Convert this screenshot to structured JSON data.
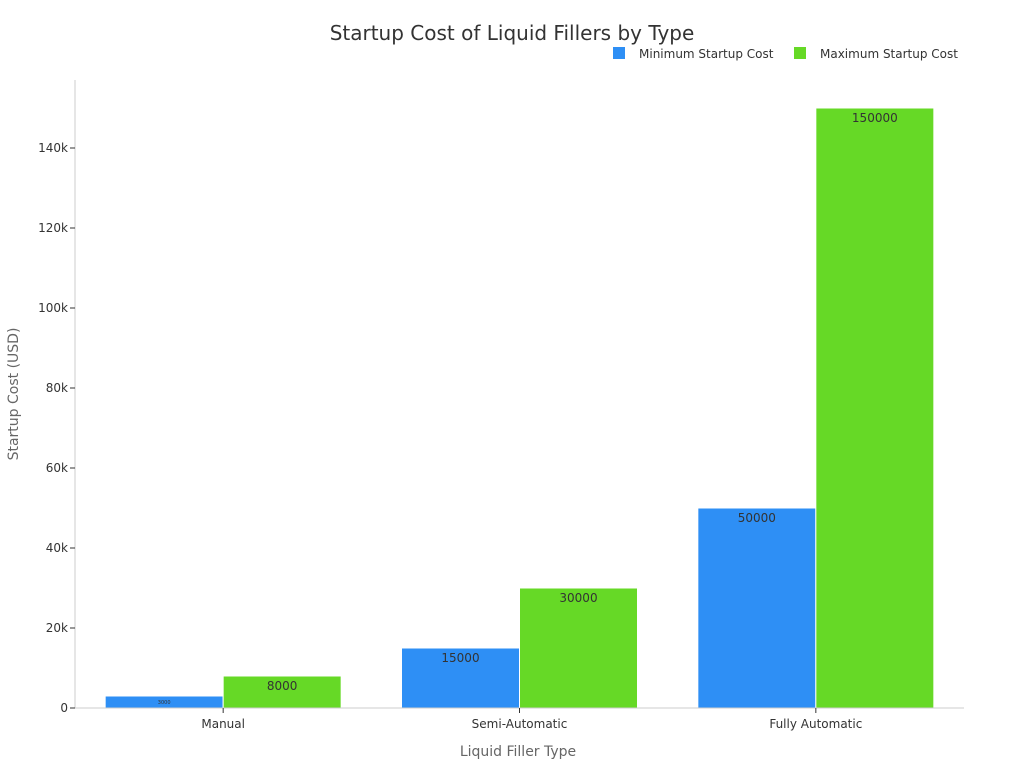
{
  "chart_data": {
    "type": "bar",
    "title": "Startup Cost of Liquid Fillers by Type",
    "xlabel": "Liquid Filler Type",
    "ylabel": "Startup Cost (USD)",
    "categories": [
      "Manual",
      "Semi-Automatic",
      "Fully Automatic"
    ],
    "series": [
      {
        "name": "Minimum Startup Cost",
        "color": "#2e8ff5",
        "values": [
          3000,
          15000,
          50000
        ]
      },
      {
        "name": "Maximum Startup Cost",
        "color": "#66d926",
        "values": [
          8000,
          30000,
          150000
        ]
      }
    ],
    "ylim": [
      0,
      157000
    ],
    "yticks": [
      0,
      20000,
      40000,
      60000,
      80000,
      100000,
      120000,
      140000
    ],
    "ytick_labels": [
      "0",
      "20k",
      "40k",
      "60k",
      "80k",
      "100k",
      "120k",
      "140k"
    ],
    "data_labels": [
      [
        "3000",
        "15000",
        "50000"
      ],
      [
        "8000",
        "30000",
        "150000"
      ]
    ],
    "legend_position": "top-right",
    "grid": false
  }
}
